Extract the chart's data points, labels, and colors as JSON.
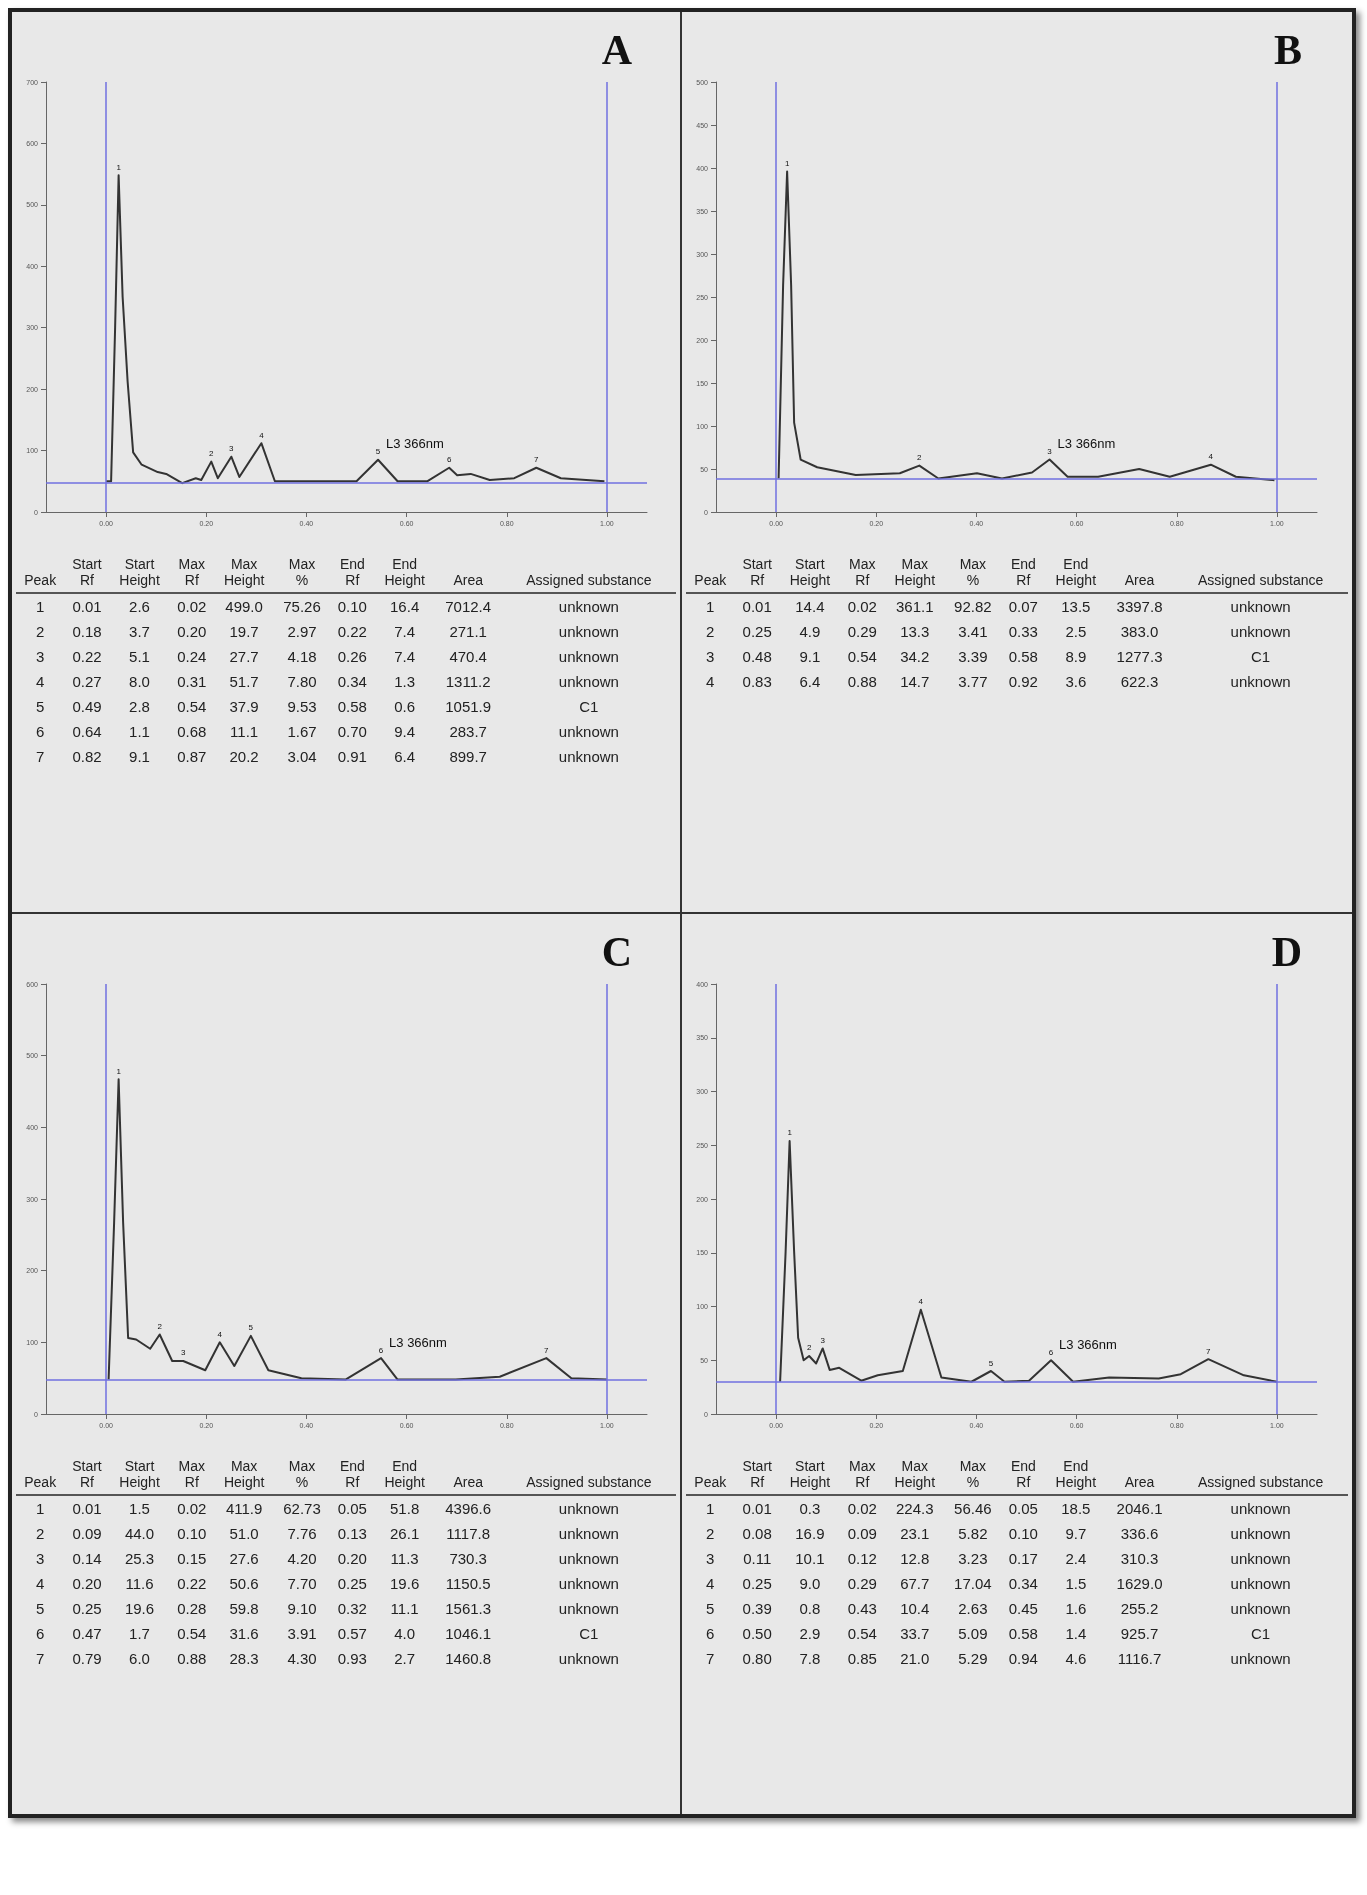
{
  "chart_data": [
    {
      "type": "line",
      "title": "A",
      "xlim": [
        -0.12,
        1.08
      ],
      "xticks": [
        {
          "value": 0,
          "label": "0.00"
        },
        {
          "value": 0.2,
          "label": "0.20"
        },
        {
          "value": 0.4,
          "label": "0.40"
        },
        {
          "value": 0.6,
          "label": "0.60"
        },
        {
          "value": 0.8,
          "label": "0.80"
        },
        {
          "value": 1,
          "label": "1.00"
        }
      ],
      "ylim": [
        0,
        700
      ],
      "yticks": [
        0,
        100,
        200,
        300,
        400,
        500,
        600,
        700
      ],
      "series": [
        {
          "color": "#333333",
          "x": [
            0,
            0.01,
            0.018,
            0.025,
            0.033,
            0.043,
            0.054,
            0.071,
            0.103,
            0.12,
            0.152,
            0.179,
            0.19,
            0.21,
            0.223,
            0.25,
            0.266,
            0.31,
            0.337,
            0.5,
            0.543,
            0.582,
            0.641,
            0.685,
            0.701,
            0.728,
            0.766,
            0.815,
            0.859,
            0.908,
            0.995
          ],
          "values": [
            50,
            50,
            300,
            548,
            350,
            212,
            97,
            77,
            65,
            62,
            47,
            55,
            52,
            82,
            55,
            90,
            57,
            112,
            50,
            50,
            85,
            50,
            50,
            72,
            60,
            62,
            52,
            55,
            72,
            55,
            50
          ]
        }
      ],
      "ref_lines": [
        {
          "axis": "x",
          "value": 0,
          "color": "#7070e0"
        },
        {
          "axis": "x",
          "value": 1,
          "color": "#7070e0"
        },
        {
          "axis": "y",
          "value": 48,
          "color": "#7070e0"
        }
      ],
      "annotations": [
        {
          "text": "L3 366nm",
          "x": 0.543,
          "y": 85
        },
        {
          "text": "1",
          "x": 0.025,
          "y": 548
        },
        {
          "text": "2",
          "x": 0.21,
          "y": 82
        },
        {
          "text": "3",
          "x": 0.25,
          "y": 90
        },
        {
          "text": "4",
          "x": 0.31,
          "y": 112
        },
        {
          "text": "5",
          "x": 0.543,
          "y": 85
        },
        {
          "text": "6",
          "x": 0.685,
          "y": 72
        },
        {
          "text": "7",
          "x": 0.859,
          "y": 72
        },
        "Peak",
        "Start\nRf",
        "Start\nHeight",
        "Max\nRf",
        "Max\nHeight",
        "Max\n%",
        "End\nRf",
        "End\nHeight",
        "Area",
        "Assigned substance",
        "1",
        "0.01",
        "2.6",
        "0.02",
        "499.0",
        "75.26",
        "0.10",
        "16.4",
        "7012.4",
        "unknown",
        "2",
        "0.18",
        "3.7",
        "0.20",
        "19.7",
        "2.97",
        "0.22",
        "7.4",
        "271.1",
        "unknown",
        "3",
        "0.22",
        "5.1",
        "0.24",
        "27.7",
        "4.18",
        "0.26",
        "7.4",
        "470.4",
        "unknown",
        "4",
        "0.27",
        "8.0",
        "0.31",
        "51.7",
        "7.80",
        "0.34",
        "1.3",
        "1311.2",
        "unknown",
        "5",
        "0.49",
        "2.8",
        "0.54",
        "37.9",
        "9.53",
        "0.58",
        "0.6",
        "1051.9",
        "C1",
        "6",
        "0.64",
        "1.1",
        "0.68",
        "11.1",
        "1.67",
        "0.70",
        "9.4",
        "283.7",
        "unknown",
        "7",
        "0.82",
        "9.1",
        "0.87",
        "20.2",
        "3.04",
        "0.91",
        "6.4",
        "899.7",
        "unknown"
      ]
    },
    {
      "type": "line",
      "title": "B",
      "xlim": [
        -0.12,
        1.08
      ],
      "xticks": [
        {
          "value": 0,
          "label": "0.00"
        },
        {
          "value": 0.2,
          "label": "0.20"
        },
        {
          "value": 0.4,
          "label": "0.40"
        },
        {
          "value": 0.6,
          "label": "0.60"
        },
        {
          "value": 0.8,
          "label": "0.80"
        },
        {
          "value": 1,
          "label": "1.00"
        }
      ],
      "ylim": [
        0,
        500
      ],
      "yticks": [
        0,
        50,
        100,
        150,
        200,
        250,
        300,
        350,
        400,
        450,
        500
      ],
      "series": [
        {
          "color": "#333333",
          "x": [
            0.005,
            0.014,
            0.022,
            0.03,
            0.036,
            0.049,
            0.082,
            0.159,
            0.247,
            0.286,
            0.324,
            0.401,
            0.451,
            0.511,
            0.546,
            0.582,
            0.643,
            0.725,
            0.786,
            0.868,
            0.918,
            0.995
          ],
          "values": [
            39,
            264,
            396,
            264,
            104,
            61,
            52,
            43,
            45,
            54,
            39,
            45,
            39,
            46,
            61,
            41,
            41,
            50,
            41,
            55,
            41,
            37
          ]
        }
      ],
      "ref_lines": [
        {
          "axis": "x",
          "value": 0,
          "color": "#7070e0"
        },
        {
          "axis": "x",
          "value": 1,
          "color": "#7070e0"
        },
        {
          "axis": "y",
          "value": 39,
          "color": "#7070e0"
        }
      ],
      "annotations": [
        {
          "text": "L3 366nm",
          "x": 0.546,
          "y": 61
        },
        {
          "text": "1",
          "x": 0.022,
          "y": 396
        },
        {
          "text": "2",
          "x": 0.286,
          "y": 54
        },
        {
          "text": "3",
          "x": 0.546,
          "y": 61
        },
        {
          "text": "4",
          "x": 0.868,
          "y": 55
        },
        "Peak",
        "Start\nRf",
        "Start\nHeight",
        "Max\nRf",
        "Max\nHeight",
        "Max\n%",
        "End\nRf",
        "End\nHeight",
        "Area",
        "Assigned substance",
        "1",
        "0.01",
        "14.4",
        "0.02",
        "361.1",
        "92.82",
        "0.07",
        "13.5",
        "3397.8",
        "unknown",
        "2",
        "0.25",
        "4.9",
        "0.29",
        "13.3",
        "3.41",
        "0.33",
        "2.5",
        "383.0",
        "unknown",
        "3",
        "0.48",
        "9.1",
        "0.54",
        "34.2",
        "3.39",
        "0.58",
        "8.9",
        "1277.3",
        "C1",
        "4",
        "0.83",
        "6.4",
        "0.88",
        "14.7",
        "3.77",
        "0.92",
        "3.6",
        "622.3",
        "unknown"
      ]
    },
    {
      "type": "line",
      "title": "C",
      "xlim": [
        -0.12,
        1.08
      ],
      "xticks": [
        {
          "value": 0,
          "label": "0.00"
        },
        {
          "value": 0.2,
          "label": "0.20"
        },
        {
          "value": 0.4,
          "label": "0.40"
        },
        {
          "value": 0.6,
          "label": "0.60"
        },
        {
          "value": 0.8,
          "label": "0.80"
        },
        {
          "value": 1,
          "label": "1.00"
        }
      ],
      "ylim": [
        0,
        600
      ],
      "yticks": [
        0,
        100,
        200,
        300,
        400,
        500,
        600
      ],
      "series": [
        {
          "color": "#333333",
          "x": [
            0.005,
            0.016,
            0.025,
            0.034,
            0.044,
            0.06,
            0.088,
            0.107,
            0.132,
            0.154,
            0.198,
            0.227,
            0.256,
            0.289,
            0.324,
            0.39,
            0.478,
            0.549,
            0.582,
            0.698,
            0.786,
            0.879,
            0.929,
            1.0
          ],
          "values": [
            48,
            267,
            467,
            267,
            106,
            104,
            91,
            111,
            74,
            74,
            61,
            100,
            67,
            109,
            61,
            50,
            48,
            78,
            48,
            48,
            52,
            78,
            50,
            48
          ]
        }
      ],
      "ref_lines": [
        {
          "axis": "x",
          "value": 0,
          "color": "#7070e0"
        },
        {
          "axis": "x",
          "value": 1,
          "color": "#7070e0"
        },
        {
          "axis": "y",
          "value": 48,
          "color": "#7070e0"
        }
      ],
      "annotations": [
        {
          "text": "L3 366nm",
          "x": 0.549,
          "y": 78
        },
        {
          "text": "1",
          "x": 0.025,
          "y": 467
        },
        {
          "text": "2",
          "x": 0.107,
          "y": 111
        },
        {
          "text": "3",
          "x": 0.154,
          "y": 74
        },
        {
          "text": "4",
          "x": 0.227,
          "y": 100
        },
        {
          "text": "5",
          "x": 0.289,
          "y": 109
        },
        {
          "text": "6",
          "x": 0.549,
          "y": 78
        },
        {
          "text": "7",
          "x": 0.879,
          "y": 78
        },
        "Peak",
        "Start\nRf",
        "Start\nHeight",
        "Max\nRf",
        "Max\nHeight",
        "Max\n%",
        "End\nRf",
        "End\nHeight",
        "Area",
        "Assigned substance",
        "1",
        "0.01",
        "1.5",
        "0.02",
        "411.9",
        "62.73",
        "0.05",
        "51.8",
        "4396.6",
        "unknown",
        "2",
        "0.09",
        "44.0",
        "0.10",
        "51.0",
        "7.76",
        "0.13",
        "26.1",
        "1117.8",
        "unknown",
        "3",
        "0.14",
        "25.3",
        "0.15",
        "27.6",
        "4.20",
        "0.20",
        "11.3",
        "730.3",
        "unknown",
        "4",
        "0.20",
        "11.6",
        "0.22",
        "50.6",
        "7.70",
        "0.25",
        "19.6",
        "1150.5",
        "unknown",
        "5",
        "0.25",
        "19.6",
        "0.28",
        "59.8",
        "9.10",
        "0.32",
        "11.1",
        "1561.3",
        "unknown",
        "6",
        "0.47",
        "1.7",
        "0.54",
        "31.6",
        "3.91",
        "0.57",
        "4.0",
        "1046.1",
        "C1",
        "7",
        "0.79",
        "6.0",
        "0.88",
        "28.3",
        "4.30",
        "0.93",
        "2.7",
        "1460.8",
        "unknown"
      ]
    },
    {
      "type": "line",
      "title": "D",
      "xlim": [
        -0.12,
        1.08
      ],
      "xticks": [
        {
          "value": 0,
          "label": "0.00"
        },
        {
          "value": 0.2,
          "label": "0.20"
        },
        {
          "value": 0.4,
          "label": "0.40"
        },
        {
          "value": 0.6,
          "label": "0.60"
        },
        {
          "value": 0.8,
          "label": "0.80"
        },
        {
          "value": 1,
          "label": "1.00"
        }
      ],
      "ylim": [
        0,
        400
      ],
      "yticks": [
        0,
        50,
        100,
        150,
        200,
        250,
        300,
        350,
        400
      ],
      "series": [
        {
          "color": "#333333",
          "x": [
            0.008,
            0.019,
            0.027,
            0.036,
            0.044,
            0.055,
            0.066,
            0.08,
            0.093,
            0.107,
            0.126,
            0.17,
            0.203,
            0.253,
            0.289,
            0.33,
            0.39,
            0.429,
            0.456,
            0.505,
            0.549,
            0.593,
            0.665,
            0.764,
            0.808,
            0.863,
            0.934,
            1.0
          ],
          "values": [
            30,
            151,
            254,
            151,
            71,
            50,
            54,
            47,
            61,
            41,
            43,
            31,
            36,
            40,
            97,
            34,
            30,
            40,
            30,
            31,
            50,
            30,
            34,
            33,
            37,
            51,
            36,
            30
          ]
        }
      ],
      "ref_lines": [
        {
          "axis": "x",
          "value": 0,
          "color": "#7070e0"
        },
        {
          "axis": "x",
          "value": 1,
          "color": "#7070e0"
        },
        {
          "axis": "y",
          "value": 30,
          "color": "#7070e0"
        }
      ],
      "annotations": [
        {
          "text": "L3 366nm",
          "x": 0.549,
          "y": 50
        },
        {
          "text": "1",
          "x": 0.027,
          "y": 254
        },
        {
          "text": "2",
          "x": 0.066,
          "y": 54
        },
        {
          "text": "3",
          "x": 0.093,
          "y": 61
        },
        {
          "text": "4",
          "x": 0.289,
          "y": 97
        },
        {
          "text": "5",
          "x": 0.429,
          "y": 40
        },
        {
          "text": "6",
          "x": 0.549,
          "y": 50
        },
        {
          "text": "7",
          "x": 0.863,
          "y": 51
        },
        "Peak",
        "Start\nRf",
        "Start\nHeight",
        "Max\nRf",
        "Max\nHeight",
        "Max\n%",
        "End\nRf",
        "End\nHeight",
        "Area",
        "Assigned substance",
        "1",
        "0.01",
        "0.3",
        "0.02",
        "224.3",
        "56.46",
        "0.05",
        "18.5",
        "2046.1",
        "unknown",
        "2",
        "0.08",
        "16.9",
        "0.09",
        "23.1",
        "5.82",
        "0.10",
        "9.7",
        "336.6",
        "unknown",
        "3",
        "0.11",
        "10.1",
        "0.12",
        "12.8",
        "3.23",
        "0.17",
        "2.4",
        "310.3",
        "unknown",
        "4",
        "0.25",
        "9.0",
        "0.29",
        "67.7",
        "17.04",
        "0.34",
        "1.5",
        "1629.0",
        "unknown",
        "5",
        "0.39",
        "0.8",
        "0.43",
        "10.4",
        "2.63",
        "0.45",
        "1.6",
        "255.2",
        "unknown",
        "6",
        "0.50",
        "2.9",
        "0.54",
        "33.7",
        "5.09",
        "0.58",
        "1.4",
        "925.7",
        "C1",
        "7",
        "0.80",
        "7.8",
        "0.85",
        "21.0",
        "5.29",
        "0.94",
        "4.6",
        "1116.7",
        "unknown"
      ]
    }
  ]
}
